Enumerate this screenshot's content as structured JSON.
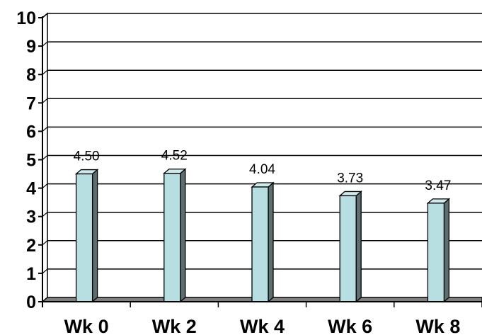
{
  "chart_data": {
    "type": "bar",
    "categories": [
      "Wk 0",
      "Wk 2",
      "Wk 4",
      "Wk 6",
      "Wk 8"
    ],
    "values": [
      4.5,
      4.52,
      4.04,
      3.73,
      3.47
    ],
    "data_labels": [
      "4.50",
      "4.52",
      "4.04",
      "3.73",
      "3.47"
    ],
    "ylim": [
      0,
      10
    ],
    "yticks": [
      "0",
      "1",
      "2",
      "3",
      "4",
      "5",
      "6",
      "7",
      "8",
      "9",
      "10"
    ],
    "grid": true,
    "style": "3d-column",
    "colors": {
      "bar_front": "#b7dfe2",
      "bar_side": "#5c6e6f",
      "bar_top": "#cfe9ec",
      "floor": "#808080",
      "gridline": "#000000"
    }
  }
}
